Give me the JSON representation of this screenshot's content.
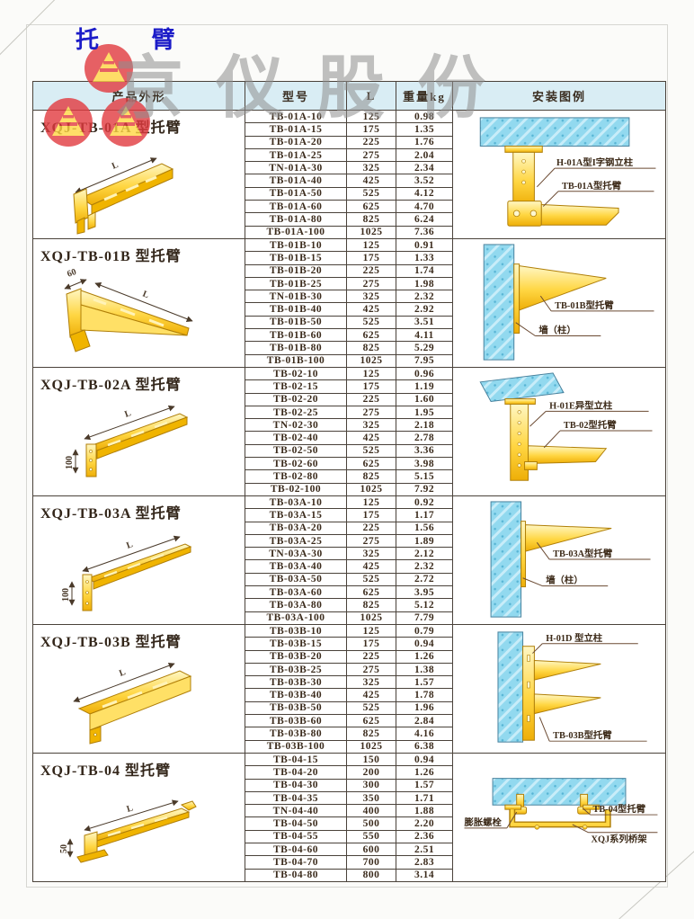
{
  "page": {
    "title": "托 臂",
    "watermark_text": "京仪股份"
  },
  "table": {
    "headers": {
      "product": "产品外形",
      "model": "型号",
      "length": "L",
      "weight": "重量kg",
      "install": "安装图例"
    }
  },
  "colors": {
    "title_blue": "#1c1cc8",
    "header_bg": "#d9edf4",
    "table_line": "#4a423a",
    "text_dark": "#3c2c1d",
    "part_yellow": "#f7c520",
    "concrete_blue": "#8fd8ee",
    "watermark_gray": "#8f8f8f",
    "logo_red": "#e23a3f",
    "logo_yellow": "#ffd643"
  },
  "sections": [
    {
      "title": "XQJ-TB-01A 型托臂",
      "drawing": {
        "dim": "L"
      },
      "install_labels": {
        "a": "H-01A型I字钢立柱",
        "b": "TB-01A型托臂"
      },
      "rows": [
        {
          "model": "TB-01A-10",
          "l": "125",
          "weight": "0.98"
        },
        {
          "model": "TB-01A-15",
          "l": "175",
          "weight": "1.35"
        },
        {
          "model": "TB-01A-20",
          "l": "225",
          "weight": "1.76"
        },
        {
          "model": "TB-01A-25",
          "l": "275",
          "weight": "2.04"
        },
        {
          "model": "TN-01A-30",
          "l": "325",
          "weight": "2.34"
        },
        {
          "model": "TB-01A-40",
          "l": "425",
          "weight": "3.52"
        },
        {
          "model": "TB-01A-50",
          "l": "525",
          "weight": "4.12"
        },
        {
          "model": "TB-01A-60",
          "l": "625",
          "weight": "4.70"
        },
        {
          "model": "TB-01A-80",
          "l": "825",
          "weight": "6.24"
        },
        {
          "model": "TB-01A-100",
          "l": "1025",
          "weight": "7.36"
        }
      ]
    },
    {
      "title": "XQJ-TB-01B 型托臂",
      "drawing": {
        "dim": "L",
        "dim2": "60"
      },
      "install_labels": {
        "a": "TB-01B型托臂",
        "b": "墙（柱）"
      },
      "rows": [
        {
          "model": "TB-01B-10",
          "l": "125",
          "weight": "0.91"
        },
        {
          "model": "TB-01B-15",
          "l": "175",
          "weight": "1.33"
        },
        {
          "model": "TB-01B-20",
          "l": "225",
          "weight": "1.74"
        },
        {
          "model": "TB-01B-25",
          "l": "275",
          "weight": "1.98"
        },
        {
          "model": "TN-01B-30",
          "l": "325",
          "weight": "2.32"
        },
        {
          "model": "TB-01B-40",
          "l": "425",
          "weight": "2.92"
        },
        {
          "model": "TB-01B-50",
          "l": "525",
          "weight": "3.51"
        },
        {
          "model": "TB-01B-60",
          "l": "625",
          "weight": "4.11"
        },
        {
          "model": "TB-01B-80",
          "l": "825",
          "weight": "5.29"
        },
        {
          "model": "TB-01B-100",
          "l": "1025",
          "weight": "7.95"
        }
      ]
    },
    {
      "title": "XQJ-TB-02A 型托臂",
      "drawing": {
        "dim": "L",
        "dim2": "100"
      },
      "install_labels": {
        "a": "H-01E异型立柱",
        "b": "TB-02型托臂"
      },
      "rows": [
        {
          "model": "TB-02-10",
          "l": "125",
          "weight": "0.96"
        },
        {
          "model": "TB-02-15",
          "l": "175",
          "weight": "1.19"
        },
        {
          "model": "TB-02-20",
          "l": "225",
          "weight": "1.60"
        },
        {
          "model": "TB-02-25",
          "l": "275",
          "weight": "1.95"
        },
        {
          "model": "TN-02-30",
          "l": "325",
          "weight": "2.18"
        },
        {
          "model": "TB-02-40",
          "l": "425",
          "weight": "2.78"
        },
        {
          "model": "TB-02-50",
          "l": "525",
          "weight": "3.36"
        },
        {
          "model": "TB-02-60",
          "l": "625",
          "weight": "3.98"
        },
        {
          "model": "TB-02-80",
          "l": "825",
          "weight": "5.15"
        },
        {
          "model": "TB-02-100",
          "l": "1025",
          "weight": "7.92"
        }
      ]
    },
    {
      "title": "XQJ-TB-03A 型托臂",
      "drawing": {
        "dim": "L",
        "dim2": "100"
      },
      "install_labels": {
        "a": "TB-03A型托臂",
        "b": "墙（柱）"
      },
      "rows": [
        {
          "model": "TB-03A-10",
          "l": "125",
          "weight": "0.92"
        },
        {
          "model": "TB-03A-15",
          "l": "175",
          "weight": "1.17"
        },
        {
          "model": "TB-03A-20",
          "l": "225",
          "weight": "1.56"
        },
        {
          "model": "TB-03A-25",
          "l": "275",
          "weight": "1.89"
        },
        {
          "model": "TN-03A-30",
          "l": "325",
          "weight": "2.12"
        },
        {
          "model": "TB-03A-40",
          "l": "425",
          "weight": "2.32"
        },
        {
          "model": "TB-03A-50",
          "l": "525",
          "weight": "2.72"
        },
        {
          "model": "TB-03A-60",
          "l": "625",
          "weight": "3.95"
        },
        {
          "model": "TB-03A-80",
          "l": "825",
          "weight": "5.12"
        },
        {
          "model": "TB-03A-100",
          "l": "1025",
          "weight": "7.79"
        }
      ]
    },
    {
      "title": "XQJ-TB-03B 型托臂",
      "drawing": {
        "dim": "L"
      },
      "install_labels": {
        "a": "H-01D 型立柱",
        "b": "TB-03B型托臂"
      },
      "rows": [
        {
          "model": "TB-03B-10",
          "l": "125",
          "weight": "0.79"
        },
        {
          "model": "TB-03B-15",
          "l": "175",
          "weight": "0.94"
        },
        {
          "model": "TB-03B-20",
          "l": "225",
          "weight": "1.26"
        },
        {
          "model": "TB-03B-25",
          "l": "275",
          "weight": "1.38"
        },
        {
          "model": "TB-03B-30",
          "l": "325",
          "weight": "1.57"
        },
        {
          "model": "TB-03B-40",
          "l": "425",
          "weight": "1.78"
        },
        {
          "model": "TB-03B-50",
          "l": "525",
          "weight": "1.96"
        },
        {
          "model": "TB-03B-60",
          "l": "625",
          "weight": "2.84"
        },
        {
          "model": "TB-03B-80",
          "l": "825",
          "weight": "4.16"
        },
        {
          "model": "TB-03B-100",
          "l": "1025",
          "weight": "6.38"
        }
      ]
    },
    {
      "title": "XQJ-TB-04 型托臂",
      "drawing": {
        "dim": "L",
        "dim2": "50"
      },
      "install_labels": {
        "a": "膨胀螺栓",
        "b": "TB-04型托臂",
        "c": "XQJ系列桥架"
      },
      "rows": [
        {
          "model": "TB-04-15",
          "l": "150",
          "weight": "0.94"
        },
        {
          "model": "TB-04-20",
          "l": "200",
          "weight": "1.26"
        },
        {
          "model": "TB-04-30",
          "l": "300",
          "weight": "1.57"
        },
        {
          "model": "TB-04-35",
          "l": "350",
          "weight": "1.71"
        },
        {
          "model": "TN-04-40",
          "l": "400",
          "weight": "1.88"
        },
        {
          "model": "TB-04-50",
          "l": "500",
          "weight": "2.20"
        },
        {
          "model": "TB-04-55",
          "l": "550",
          "weight": "2.36"
        },
        {
          "model": "TB-04-60",
          "l": "600",
          "weight": "2.51"
        },
        {
          "model": "TB-04-70",
          "l": "700",
          "weight": "2.83"
        },
        {
          "model": "TB-04-80",
          "l": "800",
          "weight": "3.14"
        }
      ]
    }
  ]
}
